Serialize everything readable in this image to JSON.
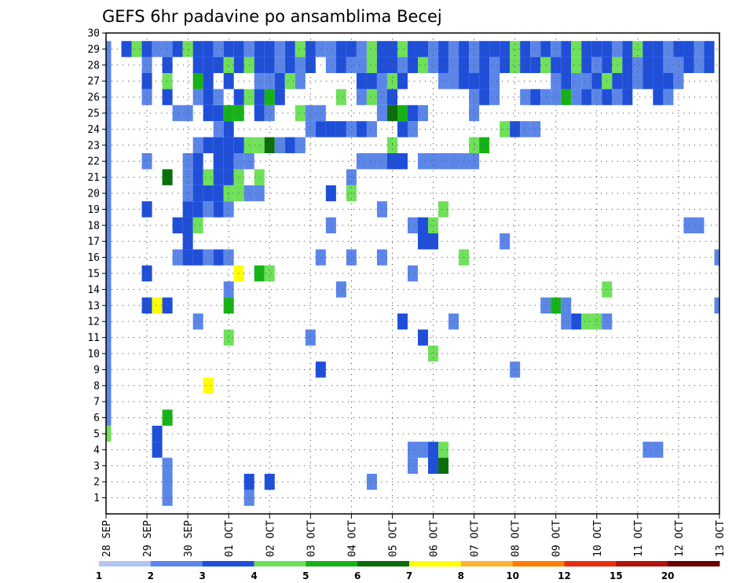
{
  "chart_data": {
    "type": "heatmap",
    "title": "GEFS 6hr padavine po ansamblima Becej",
    "xlabel": "",
    "ylabel": "",
    "x_ticks": [
      "28 SEP",
      "29 SEP",
      "30 SEP",
      "01 OCT",
      "02 OCT",
      "03 OCT",
      "04 OCT",
      "05 OCT",
      "06 OCT",
      "07 OCT",
      "08 OCT",
      "09 OCT",
      "10 OCT",
      "11 OCT",
      "12 OCT",
      "13 OCT"
    ],
    "x_range": [
      0,
      60
    ],
    "y_ticks": [
      "1",
      "2",
      "3",
      "4",
      "5",
      "6",
      "7",
      "8",
      "9",
      "10",
      "11",
      "12",
      "13",
      "14",
      "15",
      "16",
      "17",
      "18",
      "19",
      "20",
      "21",
      "22",
      "23",
      "24",
      "25",
      "26",
      "27",
      "28",
      "29",
      "30"
    ],
    "y_range": [
      0,
      30
    ],
    "grid": true,
    "colorbar": {
      "placement": "bottom",
      "labels": [
        "1",
        "2",
        "3",
        "4",
        "5",
        "6",
        "7",
        "8",
        "10",
        "12",
        "15",
        "20"
      ],
      "colors": [
        "#b3c6f2",
        "#5b86e8",
        "#1f4fd8",
        "#6fe05a",
        "#17b217",
        "#0b6e0b",
        "#ffff00",
        "#ffb333",
        "#ff7f00",
        "#e62e0e",
        "#b3140a",
        "#6b0000"
      ]
    },
    "cells": [
      [
        6,
        1,
        1
      ],
      [
        14,
        1,
        1
      ],
      [
        6,
        2,
        1
      ],
      [
        14,
        2,
        2
      ],
      [
        16,
        2,
        2
      ],
      [
        26,
        2,
        1
      ],
      [
        6,
        3,
        1
      ],
      [
        30,
        3,
        1
      ],
      [
        32,
        3,
        2
      ],
      [
        33,
        3,
        5
      ],
      [
        5,
        4,
        2
      ],
      [
        30,
        4,
        1
      ],
      [
        31,
        4,
        1
      ],
      [
        32,
        4,
        2
      ],
      [
        33,
        4,
        3
      ],
      [
        53,
        4,
        1
      ],
      [
        54,
        4,
        1
      ],
      [
        0,
        5,
        3
      ],
      [
        5,
        5,
        2
      ],
      [
        0,
        6,
        1
      ],
      [
        6,
        6,
        4
      ],
      [
        0,
        7,
        1
      ],
      [
        0,
        8,
        1
      ],
      [
        10,
        8,
        6
      ],
      [
        0,
        9,
        1
      ],
      [
        21,
        9,
        2
      ],
      [
        40,
        9,
        1
      ],
      [
        0,
        10,
        1
      ],
      [
        32,
        10,
        3
      ],
      [
        0,
        11,
        1
      ],
      [
        12,
        11,
        3
      ],
      [
        20,
        11,
        1
      ],
      [
        31,
        11,
        2
      ],
      [
        0,
        12,
        1
      ],
      [
        9,
        12,
        1
      ],
      [
        29,
        12,
        2
      ],
      [
        34,
        12,
        1
      ],
      [
        45,
        12,
        1
      ],
      [
        46,
        12,
        2
      ],
      [
        47,
        12,
        3
      ],
      [
        48,
        12,
        3
      ],
      [
        49,
        12,
        1
      ],
      [
        0,
        13,
        1
      ],
      [
        4,
        13,
        2
      ],
      [
        5,
        13,
        6
      ],
      [
        6,
        13,
        2
      ],
      [
        12,
        13,
        4
      ],
      [
        43,
        13,
        1
      ],
      [
        44,
        13,
        4
      ],
      [
        45,
        13,
        1
      ],
      [
        60,
        13,
        1
      ],
      [
        0,
        14,
        1
      ],
      [
        12,
        14,
        1
      ],
      [
        23,
        14,
        1
      ],
      [
        49,
        14,
        3
      ],
      [
        0,
        15,
        1
      ],
      [
        4,
        15,
        2
      ],
      [
        13,
        15,
        6
      ],
      [
        15,
        15,
        4
      ],
      [
        16,
        15,
        3
      ],
      [
        30,
        15,
        1
      ],
      [
        0,
        16,
        1
      ],
      [
        7,
        16,
        1
      ],
      [
        8,
        16,
        2
      ],
      [
        9,
        16,
        2
      ],
      [
        10,
        16,
        1
      ],
      [
        11,
        16,
        2
      ],
      [
        12,
        16,
        1
      ],
      [
        21,
        16,
        1
      ],
      [
        24,
        16,
        1
      ],
      [
        27,
        16,
        1
      ],
      [
        35,
        16,
        3
      ],
      [
        60,
        16,
        1
      ],
      [
        0,
        17,
        1
      ],
      [
        8,
        17,
        2
      ],
      [
        31,
        17,
        2
      ],
      [
        32,
        17,
        2
      ],
      [
        39,
        17,
        1
      ],
      [
        0,
        18,
        1
      ],
      [
        7,
        18,
        2
      ],
      [
        8,
        18,
        2
      ],
      [
        9,
        18,
        3
      ],
      [
        22,
        18,
        1
      ],
      [
        30,
        18,
        1
      ],
      [
        31,
        18,
        2
      ],
      [
        32,
        18,
        3
      ],
      [
        57,
        18,
        1
      ],
      [
        58,
        18,
        1
      ],
      [
        0,
        19,
        1
      ],
      [
        4,
        19,
        2
      ],
      [
        8,
        19,
        2
      ],
      [
        9,
        19,
        2
      ],
      [
        10,
        19,
        1
      ],
      [
        11,
        19,
        2
      ],
      [
        12,
        19,
        1
      ],
      [
        27,
        19,
        1
      ],
      [
        33,
        19,
        3
      ],
      [
        0,
        20,
        1
      ],
      [
        8,
        20,
        1
      ],
      [
        9,
        20,
        2
      ],
      [
        10,
        20,
        2
      ],
      [
        11,
        20,
        2
      ],
      [
        12,
        20,
        3
      ],
      [
        13,
        20,
        3
      ],
      [
        14,
        20,
        1
      ],
      [
        15,
        20,
        1
      ],
      [
        22,
        20,
        2
      ],
      [
        24,
        20,
        3
      ],
      [
        0,
        21,
        1
      ],
      [
        6,
        21,
        5
      ],
      [
        8,
        21,
        1
      ],
      [
        9,
        21,
        2
      ],
      [
        10,
        21,
        3
      ],
      [
        11,
        21,
        2
      ],
      [
        12,
        21,
        2
      ],
      [
        13,
        21,
        3
      ],
      [
        15,
        21,
        3
      ],
      [
        24,
        21,
        1
      ],
      [
        0,
        22,
        1
      ],
      [
        4,
        22,
        1
      ],
      [
        8,
        22,
        1
      ],
      [
        9,
        22,
        2
      ],
      [
        11,
        22,
        2
      ],
      [
        12,
        22,
        2
      ],
      [
        13,
        22,
        1
      ],
      [
        14,
        22,
        1
      ],
      [
        25,
        22,
        1
      ],
      [
        26,
        22,
        1
      ],
      [
        27,
        22,
        1
      ],
      [
        28,
        22,
        2
      ],
      [
        29,
        22,
        2
      ],
      [
        31,
        22,
        1
      ],
      [
        32,
        22,
        1
      ],
      [
        33,
        22,
        1
      ],
      [
        34,
        22,
        1
      ],
      [
        35,
        22,
        1
      ],
      [
        36,
        22,
        1
      ],
      [
        0,
        23,
        1
      ],
      [
        9,
        23,
        1
      ],
      [
        10,
        23,
        2
      ],
      [
        11,
        23,
        2
      ],
      [
        12,
        23,
        2
      ],
      [
        13,
        23,
        2
      ],
      [
        14,
        23,
        3
      ],
      [
        15,
        23,
        3
      ],
      [
        16,
        23,
        5
      ],
      [
        17,
        23,
        1
      ],
      [
        18,
        23,
        2
      ],
      [
        19,
        23,
        1
      ],
      [
        28,
        23,
        3
      ],
      [
        36,
        23,
        3
      ],
      [
        37,
        23,
        4
      ],
      [
        0,
        24,
        1
      ],
      [
        11,
        24,
        1
      ],
      [
        12,
        24,
        2
      ],
      [
        20,
        24,
        1
      ],
      [
        21,
        24,
        2
      ],
      [
        22,
        24,
        2
      ],
      [
        23,
        24,
        2
      ],
      [
        24,
        24,
        1
      ],
      [
        25,
        24,
        2
      ],
      [
        26,
        24,
        1
      ],
      [
        29,
        24,
        2
      ],
      [
        30,
        24,
        1
      ],
      [
        39,
        24,
        3
      ],
      [
        40,
        24,
        2
      ],
      [
        41,
        24,
        1
      ],
      [
        42,
        24,
        1
      ],
      [
        0,
        25,
        1
      ],
      [
        7,
        25,
        1
      ],
      [
        8,
        25,
        1
      ],
      [
        10,
        25,
        2
      ],
      [
        11,
        25,
        2
      ],
      [
        12,
        25,
        4
      ],
      [
        13,
        25,
        4
      ],
      [
        15,
        25,
        2
      ],
      [
        16,
        25,
        1
      ],
      [
        19,
        25,
        3
      ],
      [
        20,
        25,
        1
      ],
      [
        21,
        25,
        1
      ],
      [
        27,
        25,
        1
      ],
      [
        28,
        25,
        5
      ],
      [
        29,
        25,
        4
      ],
      [
        30,
        25,
        2
      ],
      [
        31,
        25,
        1
      ],
      [
        36,
        25,
        1
      ],
      [
        0,
        26,
        1
      ],
      [
        4,
        26,
        1
      ],
      [
        6,
        26,
        2
      ],
      [
        9,
        26,
        1
      ],
      [
        10,
        26,
        2
      ],
      [
        11,
        26,
        1
      ],
      [
        13,
        26,
        2
      ],
      [
        14,
        26,
        3
      ],
      [
        15,
        26,
        2
      ],
      [
        16,
        26,
        4
      ],
      [
        17,
        26,
        2
      ],
      [
        23,
        26,
        3
      ],
      [
        25,
        26,
        1
      ],
      [
        26,
        26,
        3
      ],
      [
        27,
        26,
        1
      ],
      [
        28,
        26,
        2
      ],
      [
        36,
        26,
        1
      ],
      [
        37,
        26,
        2
      ],
      [
        38,
        26,
        1
      ],
      [
        41,
        26,
        1
      ],
      [
        42,
        26,
        2
      ],
      [
        43,
        26,
        1
      ],
      [
        44,
        26,
        1
      ],
      [
        45,
        26,
        4
      ],
      [
        46,
        26,
        1
      ],
      [
        47,
        26,
        2
      ],
      [
        48,
        26,
        1
      ],
      [
        49,
        26,
        2
      ],
      [
        50,
        26,
        1
      ],
      [
        51,
        26,
        2
      ],
      [
        54,
        26,
        2
      ],
      [
        55,
        26,
        1
      ],
      [
        0,
        27,
        1
      ],
      [
        4,
        27,
        2
      ],
      [
        6,
        27,
        3
      ],
      [
        9,
        27,
        4
      ],
      [
        10,
        27,
        2
      ],
      [
        12,
        27,
        2
      ],
      [
        15,
        27,
        1
      ],
      [
        16,
        27,
        1
      ],
      [
        17,
        27,
        2
      ],
      [
        18,
        27,
        3
      ],
      [
        19,
        27,
        1
      ],
      [
        25,
        27,
        2
      ],
      [
        26,
        27,
        2
      ],
      [
        27,
        27,
        1
      ],
      [
        28,
        27,
        3
      ],
      [
        29,
        27,
        2
      ],
      [
        33,
        27,
        1
      ],
      [
        34,
        27,
        1
      ],
      [
        35,
        27,
        2
      ],
      [
        36,
        27,
        2
      ],
      [
        37,
        27,
        2
      ],
      [
        38,
        27,
        1
      ],
      [
        44,
        27,
        1
      ],
      [
        45,
        27,
        2
      ],
      [
        46,
        27,
        1
      ],
      [
        47,
        27,
        1
      ],
      [
        48,
        27,
        2
      ],
      [
        49,
        27,
        3
      ],
      [
        50,
        27,
        2
      ],
      [
        51,
        27,
        2
      ],
      [
        52,
        27,
        1
      ],
      [
        53,
        27,
        2
      ],
      [
        54,
        27,
        2
      ],
      [
        55,
        27,
        2
      ],
      [
        56,
        27,
        1
      ],
      [
        0,
        28,
        1
      ],
      [
        4,
        28,
        1
      ],
      [
        6,
        28,
        2
      ],
      [
        9,
        28,
        2
      ],
      [
        10,
        28,
        2
      ],
      [
        11,
        28,
        2
      ],
      [
        12,
        28,
        3
      ],
      [
        13,
        28,
        2
      ],
      [
        14,
        28,
        3
      ],
      [
        15,
        28,
        2
      ],
      [
        16,
        28,
        2
      ],
      [
        17,
        28,
        1
      ],
      [
        18,
        28,
        2
      ],
      [
        19,
        28,
        1
      ],
      [
        20,
        28,
        2
      ],
      [
        22,
        28,
        1
      ],
      [
        23,
        28,
        2
      ],
      [
        24,
        28,
        1
      ],
      [
        25,
        28,
        1
      ],
      [
        26,
        28,
        3
      ],
      [
        27,
        28,
        2
      ],
      [
        28,
        28,
        2
      ],
      [
        29,
        28,
        1
      ],
      [
        30,
        28,
        2
      ],
      [
        31,
        28,
        3
      ],
      [
        32,
        28,
        1
      ],
      [
        33,
        28,
        2
      ],
      [
        34,
        28,
        1
      ],
      [
        35,
        28,
        2
      ],
      [
        36,
        28,
        1
      ],
      [
        37,
        28,
        2
      ],
      [
        38,
        28,
        1
      ],
      [
        39,
        28,
        2
      ],
      [
        40,
        28,
        3
      ],
      [
        41,
        28,
        2
      ],
      [
        42,
        28,
        2
      ],
      [
        43,
        28,
        3
      ],
      [
        44,
        28,
        2
      ],
      [
        45,
        28,
        2
      ],
      [
        46,
        28,
        3
      ],
      [
        47,
        28,
        2
      ],
      [
        48,
        28,
        1
      ],
      [
        49,
        28,
        2
      ],
      [
        50,
        28,
        3
      ],
      [
        51,
        28,
        2
      ],
      [
        52,
        28,
        1
      ],
      [
        53,
        28,
        2
      ],
      [
        54,
        28,
        2
      ],
      [
        55,
        28,
        1
      ],
      [
        56,
        28,
        1
      ],
      [
        57,
        28,
        2
      ],
      [
        58,
        28,
        1
      ],
      [
        59,
        28,
        2
      ],
      [
        0,
        29,
        1
      ],
      [
        2,
        29,
        2
      ],
      [
        3,
        29,
        3
      ],
      [
        4,
        29,
        2
      ],
      [
        5,
        29,
        1
      ],
      [
        6,
        29,
        1
      ],
      [
        7,
        29,
        2
      ],
      [
        8,
        29,
        3
      ],
      [
        9,
        29,
        2
      ],
      [
        10,
        29,
        2
      ],
      [
        11,
        29,
        1
      ],
      [
        12,
        29,
        2
      ],
      [
        13,
        29,
        2
      ],
      [
        14,
        29,
        1
      ],
      [
        15,
        29,
        2
      ],
      [
        16,
        29,
        2
      ],
      [
        17,
        29,
        1
      ],
      [
        18,
        29,
        2
      ],
      [
        19,
        29,
        3
      ],
      [
        20,
        29,
        2
      ],
      [
        21,
        29,
        1
      ],
      [
        22,
        29,
        1
      ],
      [
        23,
        29,
        2
      ],
      [
        24,
        29,
        2
      ],
      [
        25,
        29,
        1
      ],
      [
        26,
        29,
        3
      ],
      [
        27,
        29,
        2
      ],
      [
        28,
        29,
        2
      ],
      [
        29,
        29,
        3
      ],
      [
        30,
        29,
        2
      ],
      [
        31,
        29,
        2
      ],
      [
        32,
        29,
        1
      ],
      [
        33,
        29,
        2
      ],
      [
        34,
        29,
        1
      ],
      [
        35,
        29,
        2
      ],
      [
        36,
        29,
        1
      ],
      [
        37,
        29,
        2
      ],
      [
        38,
        29,
        2
      ],
      [
        39,
        29,
        2
      ],
      [
        40,
        29,
        3
      ],
      [
        41,
        29,
        2
      ],
      [
        42,
        29,
        1
      ],
      [
        43,
        29,
        2
      ],
      [
        44,
        29,
        1
      ],
      [
        45,
        29,
        2
      ],
      [
        46,
        29,
        3
      ],
      [
        47,
        29,
        2
      ],
      [
        48,
        29,
        2
      ],
      [
        49,
        29,
        2
      ],
      [
        50,
        29,
        1
      ],
      [
        51,
        29,
        2
      ],
      [
        52,
        29,
        3
      ],
      [
        53,
        29,
        2
      ],
      [
        54,
        29,
        2
      ],
      [
        55,
        29,
        1
      ],
      [
        56,
        29,
        2
      ],
      [
        57,
        29,
        2
      ],
      [
        58,
        29,
        1
      ],
      [
        59,
        29,
        2
      ]
    ]
  }
}
